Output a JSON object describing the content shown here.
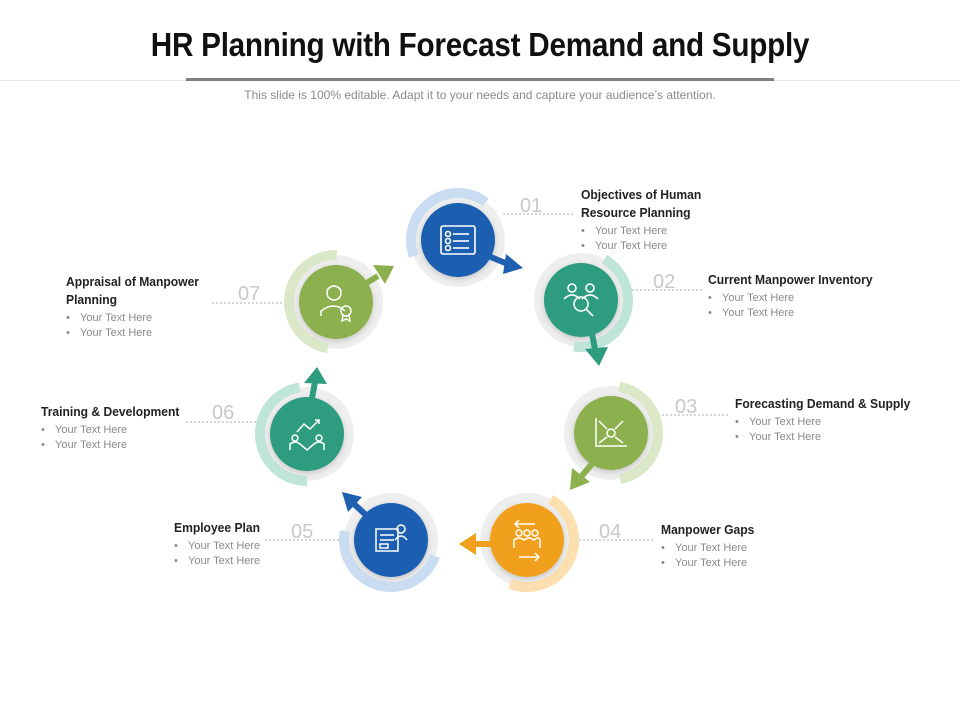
{
  "title": "HR Planning with Forecast Demand and Supply",
  "subtitle": "This slide is 100% editable. Adapt it to your needs and capture your audience’s attention.",
  "colors": {
    "blue": "#1f5fb0",
    "teal": "#2e9c7e",
    "olive": "#8db04f",
    "orange": "#f0a01c",
    "bullet_text": "#8a8a8a",
    "number": "#c8c8c8"
  },
  "steps": [
    {
      "number": "01",
      "title": "Objectives of Human Resource Planning",
      "bullets": [
        "Your Text Here",
        "Your Text Here"
      ],
      "icon": "checklist-icon",
      "color": "#1f5fb0"
    },
    {
      "number": "02",
      "title": "Current Manpower Inventory",
      "bullets": [
        "Your Text Here",
        "Your Text Here"
      ],
      "icon": "people-search-icon",
      "color": "#2e9c7e"
    },
    {
      "number": "03",
      "title": "Forecasting Demand & Supply",
      "bullets": [
        "Your Text Here",
        "Your Text Here"
      ],
      "icon": "dollar-chart-icon",
      "color": "#8db04f"
    },
    {
      "number": "04",
      "title": "Manpower Gaps",
      "bullets": [
        "Your Text Here",
        "Your Text Here"
      ],
      "icon": "team-arrows-icon",
      "color": "#f0a01c"
    },
    {
      "number": "05",
      "title": "Employee Plan",
      "bullets": [
        "Your Text Here",
        "Your Text Here"
      ],
      "icon": "employee-board-icon",
      "color": "#1f5fb0"
    },
    {
      "number": "06",
      "title": "Training & Development",
      "bullets": [
        "Your Text Here",
        "Your Text Here"
      ],
      "icon": "trainer-chart-icon",
      "color": "#2e9c7e"
    },
    {
      "number": "07",
      "title": "Appraisal of Manpower Planning",
      "bullets": [
        "Your Text Here",
        "Your Text Here"
      ],
      "icon": "appraisal-badge-icon",
      "color": "#8db04f"
    }
  ]
}
